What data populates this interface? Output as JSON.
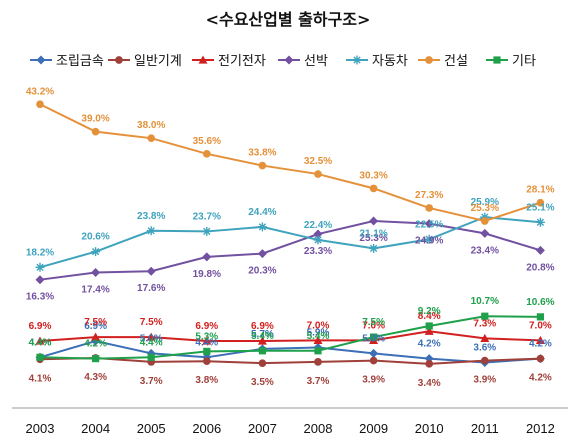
{
  "chart_data": {
    "type": "line",
    "title": "<수요산업별 출하구조>",
    "x": [
      "2003",
      "2004",
      "2005",
      "2006",
      "2007",
      "2008",
      "2009",
      "2010",
      "2011",
      "2012"
    ],
    "ylim": [
      0,
      46
    ],
    "grid": false,
    "legend": "top",
    "series": [
      {
        "name": "조립금속",
        "color": "#3c6fb5",
        "marker": "diamond",
        "values": [
          4.4,
          6.9,
          5.0,
          4.4,
          5.7,
          5.9,
          5.0,
          4.2,
          3.6,
          4.2
        ],
        "labels": [
          "4.4%",
          "6.9%",
          "5.0%",
          "4.4%",
          "5.7%",
          "5.9%",
          "5.0%",
          "4.2%",
          "3.6%",
          "4.2%"
        ]
      },
      {
        "name": "일반기계",
        "color": "#a0403a",
        "marker": "circle",
        "values": [
          4.1,
          4.3,
          3.7,
          3.8,
          3.5,
          3.7,
          3.9,
          3.4,
          3.9,
          4.2
        ],
        "labels": [
          "4.1%",
          "4.3%",
          "3.7%",
          "3.8%",
          "3.5%",
          "3.7%",
          "3.9%",
          "3.4%",
          "3.9%",
          "4.2%"
        ]
      },
      {
        "name": "전기전자",
        "color": "#d21f1f",
        "marker": "triangle",
        "values": [
          6.9,
          7.5,
          7.5,
          6.9,
          6.9,
          7.0,
          7.0,
          8.4,
          7.3,
          7.0
        ],
        "labels": [
          "6.9%",
          "7.5%",
          "7.5%",
          "6.9%",
          "6.9%",
          "7.0%",
          "7.0%",
          "8.4%",
          "7.3%",
          "7.0%"
        ]
      },
      {
        "name": "선박",
        "color": "#7151a0",
        "marker": "diamond",
        "values": [
          16.3,
          17.4,
          17.6,
          19.8,
          20.3,
          23.3,
          25.3,
          24.9,
          23.4,
          20.8
        ],
        "labels": [
          "16.3%",
          "17.4%",
          "17.6%",
          "19.8%",
          "20.3%",
          "23.3%",
          "25.3%",
          "24.9%",
          "23.4%",
          "20.8%"
        ]
      },
      {
        "name": "자동차",
        "color": "#3fa3bd",
        "marker": "star",
        "values": [
          18.2,
          20.6,
          23.8,
          23.7,
          24.4,
          22.4,
          21.1,
          22.5,
          25.9,
          25.1
        ],
        "labels": [
          "18.2%",
          "20.6%",
          "23.8%",
          "23.7%",
          "24.4%",
          "22.4%",
          "21.1%",
          "22.5%",
          "25.9%",
          "25.1%"
        ]
      },
      {
        "name": "건설",
        "color": "#e4913a",
        "marker": "circle",
        "values": [
          43.2,
          39.0,
          38.0,
          35.6,
          33.8,
          32.5,
          30.3,
          27.3,
          25.3,
          28.1
        ],
        "labels": [
          "43.2%",
          "39.0%",
          "38.0%",
          "35.6%",
          "33.8%",
          "32.5%",
          "30.3%",
          "27.3%",
          "25.3%",
          "28.1%"
        ]
      },
      {
        "name": "기타",
        "color": "#1fa04a",
        "marker": "square",
        "values": [
          4.4,
          4.2,
          4.4,
          5.3,
          5.4,
          5.4,
          7.5,
          9.2,
          10.7,
          10.6
        ],
        "labels": [
          "4.4%",
          "4.2%",
          "4.4%",
          "5.3%",
          "5.4%",
          "5.4%",
          "7.5%",
          "9.2%",
          "10.7%",
          "10.6%"
        ]
      }
    ]
  }
}
